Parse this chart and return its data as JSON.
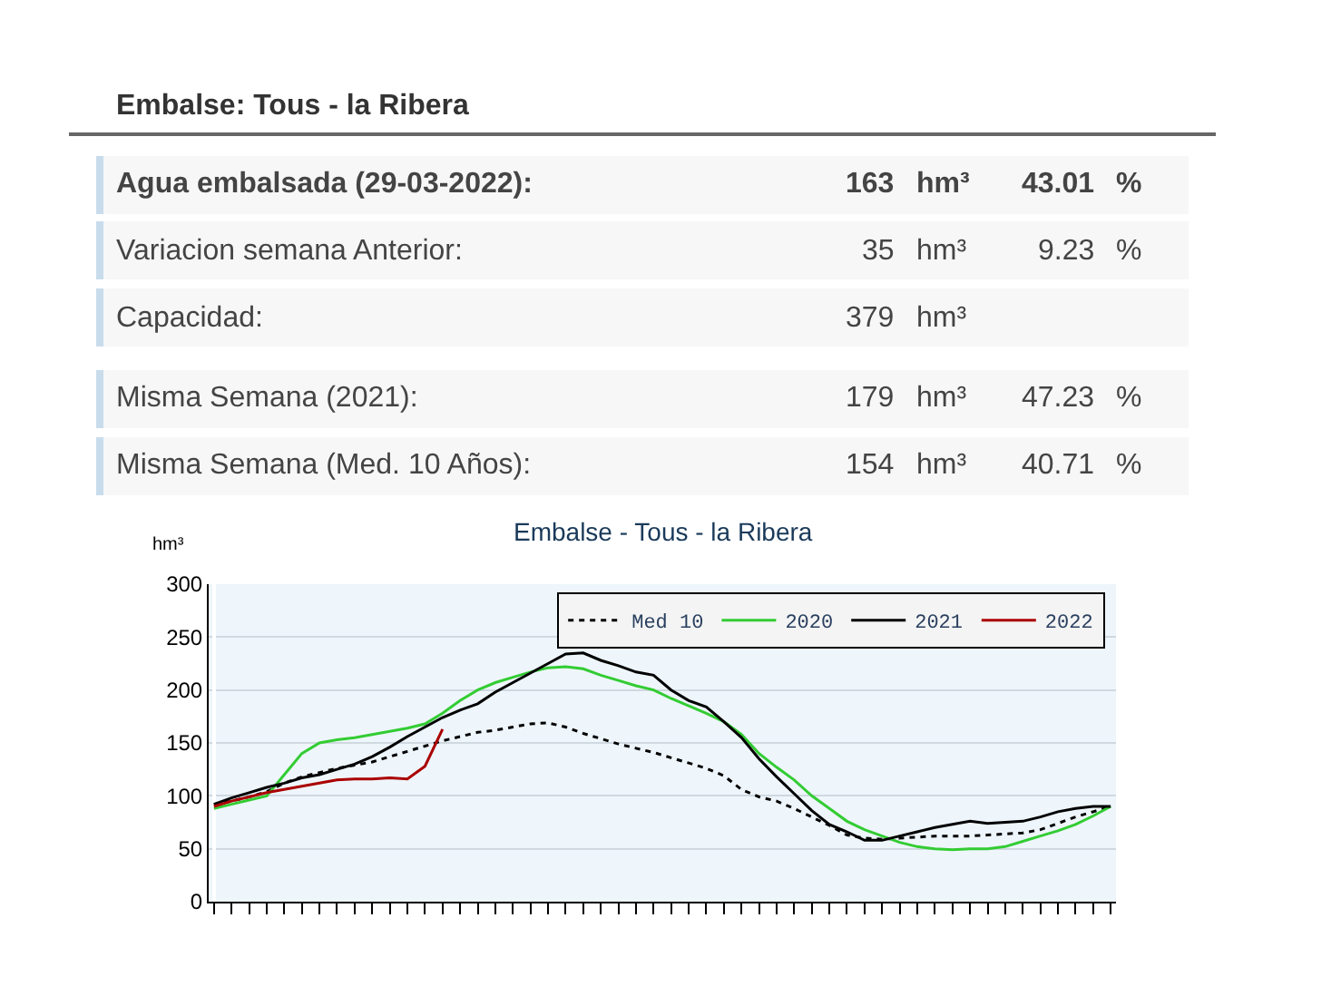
{
  "chart_data": [
    {
      "type": "other",
      "title": "Embalse: Tous - la Ribera",
      "annotations": [
        "Agua embalsada (29-03-2022):",
        "163",
        "hm³",
        "43.01",
        "%",
        "Variacion semana Anterior:",
        "35",
        "hm³",
        "9.23",
        "%",
        "Capacidad:",
        "379",
        "hm³",
        null,
        null,
        "Misma Semana (2021):",
        "179",
        "hm³",
        "47.23",
        "%",
        "Misma Semana (Med. 10 Años):",
        "154",
        "hm³",
        "40.71",
        "%"
      ]
    },
    {
      "type": "line",
      "title": "Embalse - Tous - la Ribera",
      "ylabel": "hm³",
      "ylim": [
        0,
        300
      ],
      "yticks": [
        0,
        50,
        100,
        150,
        200,
        250,
        300
      ],
      "grid": "y",
      "legend": "top right",
      "tick_labels": "y",
      "categories": [
        null,
        null,
        null,
        null,
        null,
        null,
        null,
        null,
        null,
        null,
        null,
        null,
        null,
        null,
        null,
        null,
        null,
        null,
        null,
        null,
        null,
        null,
        null,
        null,
        null,
        null,
        null,
        null,
        null,
        null,
        null,
        null,
        null,
        null,
        null,
        null,
        null,
        null,
        null,
        null,
        null,
        null,
        null,
        null,
        null,
        null,
        null,
        null,
        null,
        null,
        null,
        null
      ],
      "series": [
        {
          "name": "Med 10",
          "color": "#000000",
          "line_style": "dotted",
          "values": [
            92,
            95,
            99,
            104,
            112,
            118,
            122,
            126,
            129,
            132,
            137,
            142,
            147,
            152,
            156,
            160,
            162,
            165,
            168,
            169,
            165,
            159,
            154,
            149,
            145,
            141,
            136,
            131,
            126,
            119,
            106,
            99,
            95,
            88,
            80,
            72,
            63,
            60,
            59,
            60,
            61,
            62,
            62,
            62,
            63,
            64,
            65,
            68,
            74,
            80,
            85,
            90
          ]
        },
        {
          "name": "2020",
          "color": "#33cc33",
          "values": [
            88,
            92,
            96,
            100,
            120,
            140,
            150,
            153,
            155,
            158,
            161,
            164,
            168,
            178,
            190,
            200,
            207,
            212,
            217,
            221,
            222,
            220,
            214,
            209,
            204,
            200,
            192,
            185,
            178,
            170,
            158,
            140,
            127,
            115,
            100,
            88,
            76,
            68,
            62,
            56,
            52,
            50,
            49,
            50,
            50,
            52,
            57,
            62,
            67,
            73,
            81,
            90
          ]
        },
        {
          "name": "2021",
          "color": "#000000",
          "values": [
            92,
            98,
            103,
            108,
            112,
            117,
            120,
            125,
            130,
            137,
            146,
            156,
            165,
            174,
            181,
            187,
            198,
            207,
            216,
            225,
            234,
            235,
            228,
            223,
            217,
            214,
            200,
            190,
            184,
            170,
            155,
            135,
            118,
            102,
            86,
            73,
            66,
            58,
            58,
            62,
            66,
            70,
            73,
            76,
            74,
            75,
            76,
            80,
            85,
            88,
            90,
            90
          ]
        },
        {
          "name": "2022",
          "color": "#aa0000",
          "values": [
            90,
            95,
            99,
            103,
            106,
            109,
            112,
            115,
            116,
            116,
            117,
            116,
            128,
            163,
            null,
            null,
            null,
            null,
            null,
            null,
            null,
            null,
            null,
            null,
            null,
            null,
            null,
            null,
            null,
            null,
            null,
            null,
            null,
            null,
            null,
            null,
            null,
            null,
            null,
            null,
            null,
            null,
            null,
            null,
            null,
            null,
            null,
            null,
            null,
            null,
            null,
            null
          ]
        }
      ]
    }
  ]
}
